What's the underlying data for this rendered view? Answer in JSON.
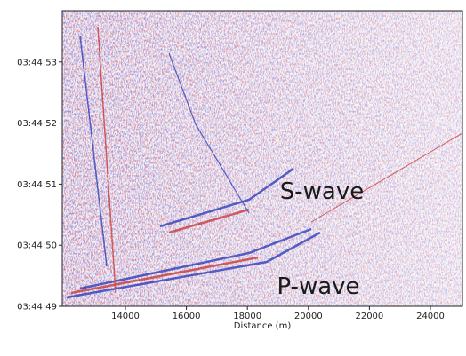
{
  "chart_data": {
    "type": "waterfall",
    "xlabel": "Distance (m)",
    "xlim": [
      11930,
      25050
    ],
    "xticks": [
      14000,
      16000,
      18000,
      20000,
      22000,
      24000
    ],
    "ylim": [
      49,
      53.84
    ],
    "yticks": [
      {
        "value": 49,
        "label": "03:44:49"
      },
      {
        "value": 50,
        "label": "03:44:50"
      },
      {
        "value": 51,
        "label": "03:44:51"
      },
      {
        "value": 52,
        "label": "03:44:52"
      },
      {
        "value": 53,
        "label": "03:44:53"
      }
    ],
    "annotations": [
      "S-wave",
      "P-wave"
    ]
  }
}
